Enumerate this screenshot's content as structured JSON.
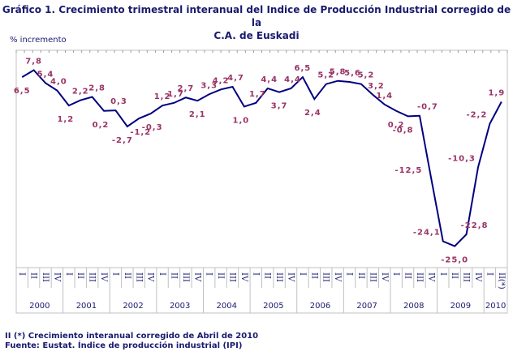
{
  "chart_data": {
    "type": "line",
    "title_line1": "Gráfico 1. Crecimiento trimestral interanual del Indice de Producción Industrial corregido de la",
    "title_line2": "C.A. de Euskadi",
    "ylabel": "% incremento",
    "ylim": [
      -29,
      11.5
    ],
    "grid": false,
    "years": [
      "2000",
      "2001",
      "2002",
      "2003",
      "2004",
      "2005",
      "2006",
      "2007",
      "2008",
      "2009",
      "2010"
    ],
    "quarters": [
      "I",
      "II",
      "III",
      "IV"
    ],
    "last_quarter_label": "II(*)",
    "values": [
      6.5,
      7.8,
      5.4,
      4.0,
      1.2,
      2.2,
      2.8,
      0.2,
      0.3,
      -2.7,
      -1.2,
      -0.3,
      1.2,
      1.7,
      2.7,
      2.1,
      3.3,
      4.2,
      4.7,
      1.0,
      1.7,
      4.4,
      3.7,
      4.4,
      6.5,
      2.4,
      5.2,
      5.8,
      5.6,
      5.2,
      3.2,
      1.4,
      0.2,
      -0.8,
      -0.7,
      -12.5,
      -24.1,
      -25.0,
      -22.8,
      -10.3,
      -2.2,
      1.9
    ],
    "line_color": "#000080",
    "label_color": "#993366"
  },
  "notes": {
    "footnote": "II (*) Crecimiento interanual corregido de Abril de 2010",
    "source": "Fuente: Eustat. Índice de producción industrial (IPI)"
  }
}
